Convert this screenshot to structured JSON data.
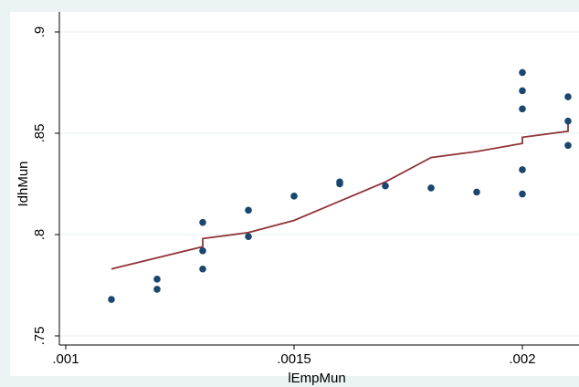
{
  "chart_data": {
    "type": "scatter",
    "xlabel": "lEmpMun",
    "ylabel": "IdhMun",
    "xlim": [
      0.001,
      0.0021
    ],
    "ylim": [
      0.75,
      0.9
    ],
    "x_ticks": [
      {
        "value": 0.001,
        "label": ".001"
      },
      {
        "value": 0.0015,
        "label": ".0015"
      },
      {
        "value": 0.002,
        "label": ".002"
      }
    ],
    "y_ticks": [
      {
        "value": 0.75,
        "label": ".75"
      },
      {
        "value": 0.8,
        "label": ".8"
      },
      {
        "value": 0.85,
        "label": ".85"
      },
      {
        "value": 0.9,
        "label": ".9"
      }
    ],
    "grid": true,
    "series": [
      {
        "kind": "scatter",
        "color": "#1a476f",
        "points": [
          [
            0.0011,
            0.768
          ],
          [
            0.0012,
            0.778
          ],
          [
            0.0012,
            0.773
          ],
          [
            0.0013,
            0.806
          ],
          [
            0.0013,
            0.792
          ],
          [
            0.0013,
            0.783
          ],
          [
            0.0014,
            0.812
          ],
          [
            0.0014,
            0.799
          ],
          [
            0.0015,
            0.819
          ],
          [
            0.0016,
            0.826
          ],
          [
            0.0016,
            0.825
          ],
          [
            0.0017,
            0.824
          ],
          [
            0.0018,
            0.823
          ],
          [
            0.0019,
            0.821
          ],
          [
            0.002,
            0.88
          ],
          [
            0.002,
            0.871
          ],
          [
            0.002,
            0.862
          ],
          [
            0.002,
            0.832
          ],
          [
            0.002,
            0.82
          ],
          [
            0.0021,
            0.868
          ],
          [
            0.0021,
            0.856
          ],
          [
            0.0021,
            0.844
          ]
        ]
      },
      {
        "kind": "line",
        "color": "#90353b",
        "points": [
          [
            0.0011,
            0.783
          ],
          [
            0.0013,
            0.794
          ],
          [
            0.0013,
            0.798
          ],
          [
            0.0014,
            0.801
          ],
          [
            0.0015,
            0.807
          ],
          [
            0.0017,
            0.826
          ],
          [
            0.0018,
            0.838
          ],
          [
            0.0019,
            0.841
          ],
          [
            0.002,
            0.845
          ],
          [
            0.002,
            0.848
          ],
          [
            0.0021,
            0.851
          ],
          [
            0.0021,
            0.856
          ]
        ]
      }
    ]
  }
}
